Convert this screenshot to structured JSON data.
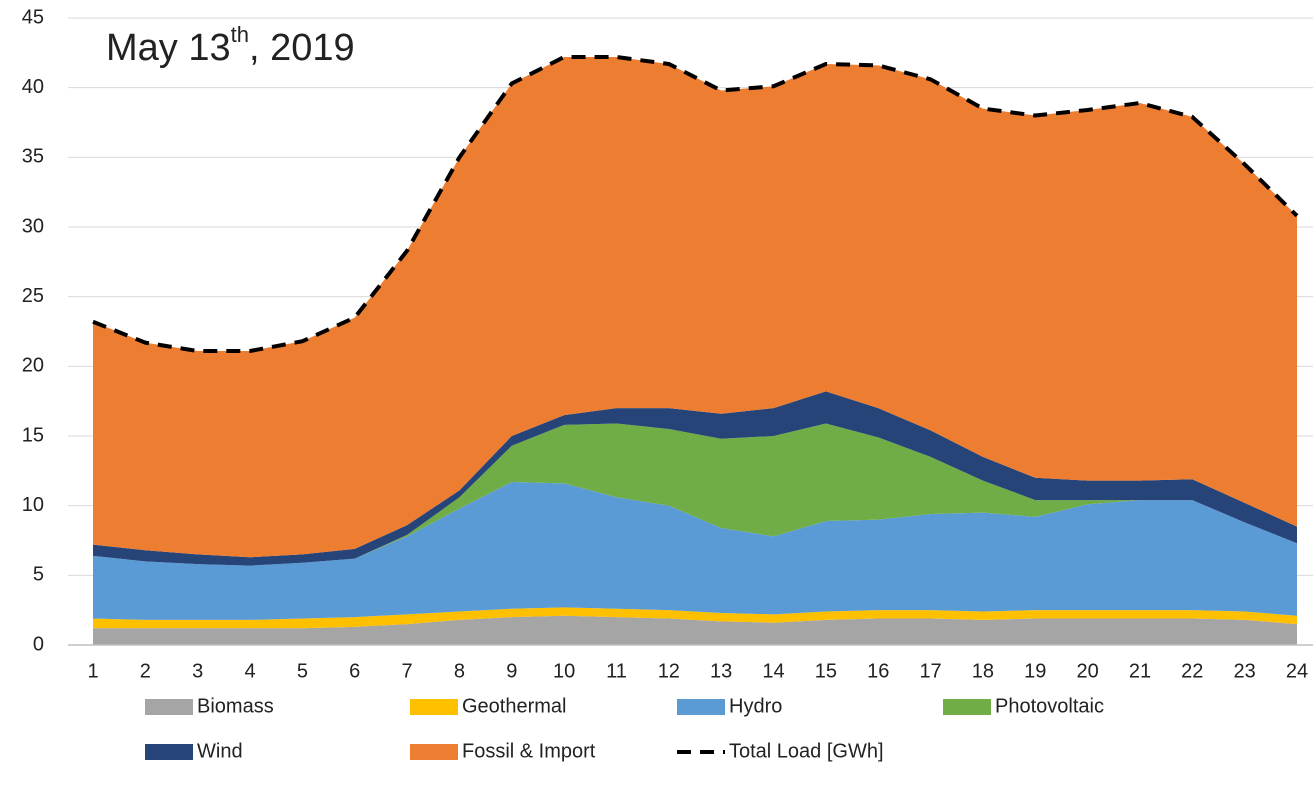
{
  "chart_data": {
    "type": "stacked_area",
    "title": [
      "May 13",
      "th",
      ", 2019"
    ],
    "categories": [
      "1",
      "2",
      "3",
      "4",
      "5",
      "6",
      "7",
      "8",
      "9",
      "10",
      "11",
      "12",
      "13",
      "14",
      "15",
      "16",
      "17",
      "18",
      "19",
      "20",
      "21",
      "22",
      "23",
      "24"
    ],
    "series": [
      {
        "name": "Biomass",
        "color": "#a5a5a5",
        "values": [
          1.2,
          1.2,
          1.2,
          1.2,
          1.2,
          1.3,
          1.5,
          1.8,
          2.0,
          2.1,
          2.0,
          1.9,
          1.7,
          1.6,
          1.8,
          1.9,
          1.9,
          1.8,
          1.9,
          1.9,
          1.9,
          1.9,
          1.8,
          1.5
        ]
      },
      {
        "name": "Geothermal",
        "color": "#ffc000",
        "values": [
          0.7,
          0.6,
          0.6,
          0.6,
          0.7,
          0.7,
          0.7,
          0.6,
          0.6,
          0.6,
          0.6,
          0.6,
          0.6,
          0.6,
          0.6,
          0.6,
          0.6,
          0.6,
          0.6,
          0.6,
          0.6,
          0.6,
          0.6,
          0.6
        ]
      },
      {
        "name": "Hydro",
        "color": "#5b9bd5",
        "values": [
          4.5,
          4.2,
          4.0,
          3.9,
          4.0,
          4.2,
          5.6,
          7.4,
          9.1,
          8.9,
          8.0,
          7.5,
          6.1,
          5.6,
          6.5,
          6.5,
          6.9,
          7.1,
          6.7,
          7.6,
          7.9,
          7.9,
          6.4,
          5.2
        ]
      },
      {
        "name": "Photovoltaic",
        "color": "#70ad47",
        "values": [
          0,
          0,
          0,
          0,
          0,
          0,
          0.1,
          0.8,
          2.6,
          4.2,
          5.3,
          5.5,
          6.4,
          7.2,
          7.0,
          5.9,
          4.1,
          2.3,
          1.2,
          0.3,
          0,
          0,
          0,
          0
        ]
      },
      {
        "name": "Wind",
        "color": "#264478",
        "values": [
          0.8,
          0.8,
          0.7,
          0.6,
          0.6,
          0.7,
          0.7,
          0.5,
          0.7,
          0.7,
          1.1,
          1.5,
          1.8,
          2.0,
          2.3,
          2.1,
          1.9,
          1.7,
          1.6,
          1.4,
          1.4,
          1.5,
          1.4,
          1.2
        ]
      },
      {
        "name": "Fossil & Import",
        "color": "#ed7d31",
        "values": [
          16.0,
          14.9,
          14.6,
          14.8,
          15.3,
          16.6,
          19.7,
          23.9,
          25.3,
          25.7,
          25.2,
          24.7,
          23.2,
          23.1,
          23.5,
          24.6,
          25.2,
          25.0,
          26.0,
          26.6,
          27.1,
          26.0,
          24.3,
          22.3
        ]
      }
    ],
    "line_series": {
      "name": "Total Load [GWh]",
      "color": "#000000",
      "values": [
        23.2,
        21.7,
        21.1,
        21.1,
        21.8,
        23.5,
        28.3,
        35.0,
        40.3,
        42.2,
        42.2,
        41.7,
        39.8,
        40.1,
        41.7,
        41.6,
        40.6,
        38.5,
        38.0,
        38.4,
        38.9,
        37.9,
        34.5,
        30.8
      ]
    },
    "ylim": [
      0,
      45
    ],
    "yticks": [
      0,
      5,
      10,
      15,
      20,
      25,
      30,
      35,
      40,
      45
    ],
    "grid": true
  }
}
